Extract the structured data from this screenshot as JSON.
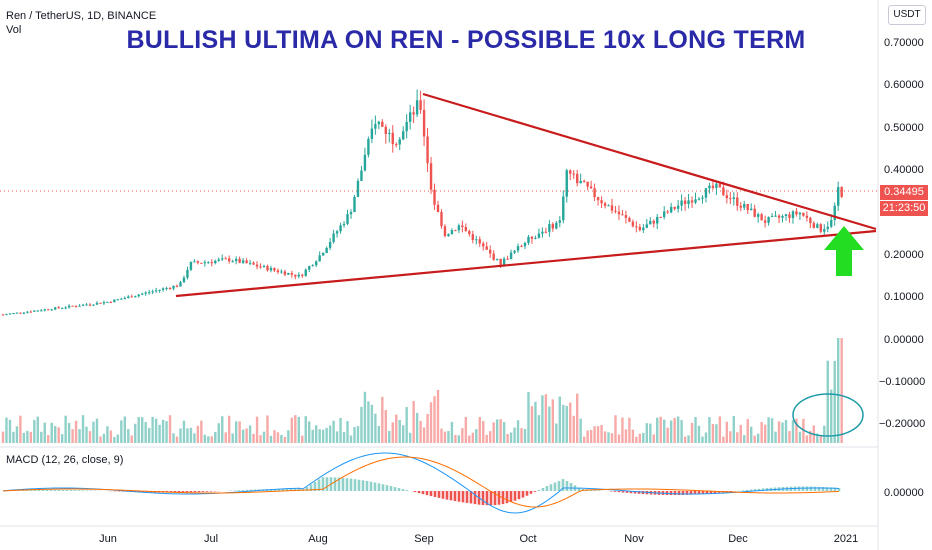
{
  "header": {
    "symbol": "Ren / TetherUS, 1D, BINANCE",
    "vol_label": "Vol",
    "macd_label": "MACD (12, 26, close, 9)",
    "headline": "BULLISH ULTIMA ON REN - POSSIBLE 10x LONG TERM",
    "currency_button": "USDT"
  },
  "price_axis": {
    "ticks": [
      "0.70000",
      "0.60000",
      "0.50000",
      "0.40000",
      "0.30000",
      "0.20000",
      "0.10000",
      "0.00000",
      "−0.10000",
      "−0.20000"
    ],
    "current_price": "0.34495",
    "countdown": "21:23:50"
  },
  "macd_axis": {
    "ticks": [
      "0.00000"
    ]
  },
  "time_axis": {
    "ticks": [
      "Jun",
      "Jul",
      "Aug",
      "Sep",
      "Oct",
      "Nov",
      "Dec",
      "2021"
    ]
  },
  "colors": {
    "up": "#26a69a",
    "down": "#ef5350",
    "trendline": "#c81c1c",
    "arrow": "#22dd22",
    "volume_circle": "#1e9aa8",
    "macd_line": "#2196f3",
    "signal_line": "#ff6d00"
  },
  "annotations": {
    "arrow": "up-arrow-icon",
    "volume_circle": "ellipse"
  },
  "chart_data": {
    "type": "candlestick",
    "x_range": [
      "May",
      "2021"
    ],
    "ylim": [
      -0.25,
      0.75
    ],
    "price_points_close": [
      [
        "May",
        0.06
      ],
      [
        "Jun",
        0.09
      ],
      [
        "Jul start",
        0.13
      ],
      [
        "mid Jul",
        0.18
      ],
      [
        "Aug start",
        0.2
      ],
      [
        "mid Aug",
        0.52
      ],
      [
        "Sep start",
        0.56
      ],
      [
        "mid Sep",
        0.3
      ],
      [
        "late Sep",
        0.18
      ],
      [
        "mid Oct",
        0.4
      ],
      [
        "Nov",
        0.26
      ],
      [
        "late Nov",
        0.36
      ],
      [
        "Dec",
        0.32
      ],
      [
        "late Dec",
        0.26
      ],
      [
        "2021",
        0.34495
      ]
    ],
    "trendlines": [
      {
        "name": "",
        "from": [
          "Sep start",
          0.58
        ],
        "to": [
          "2021",
          0.27
        ]
      },
      {
        "name": "",
        "from": [
          "mid Jun",
          0.1
        ],
        "to": [
          "2021",
          0.25
        ]
      }
    ]
  }
}
